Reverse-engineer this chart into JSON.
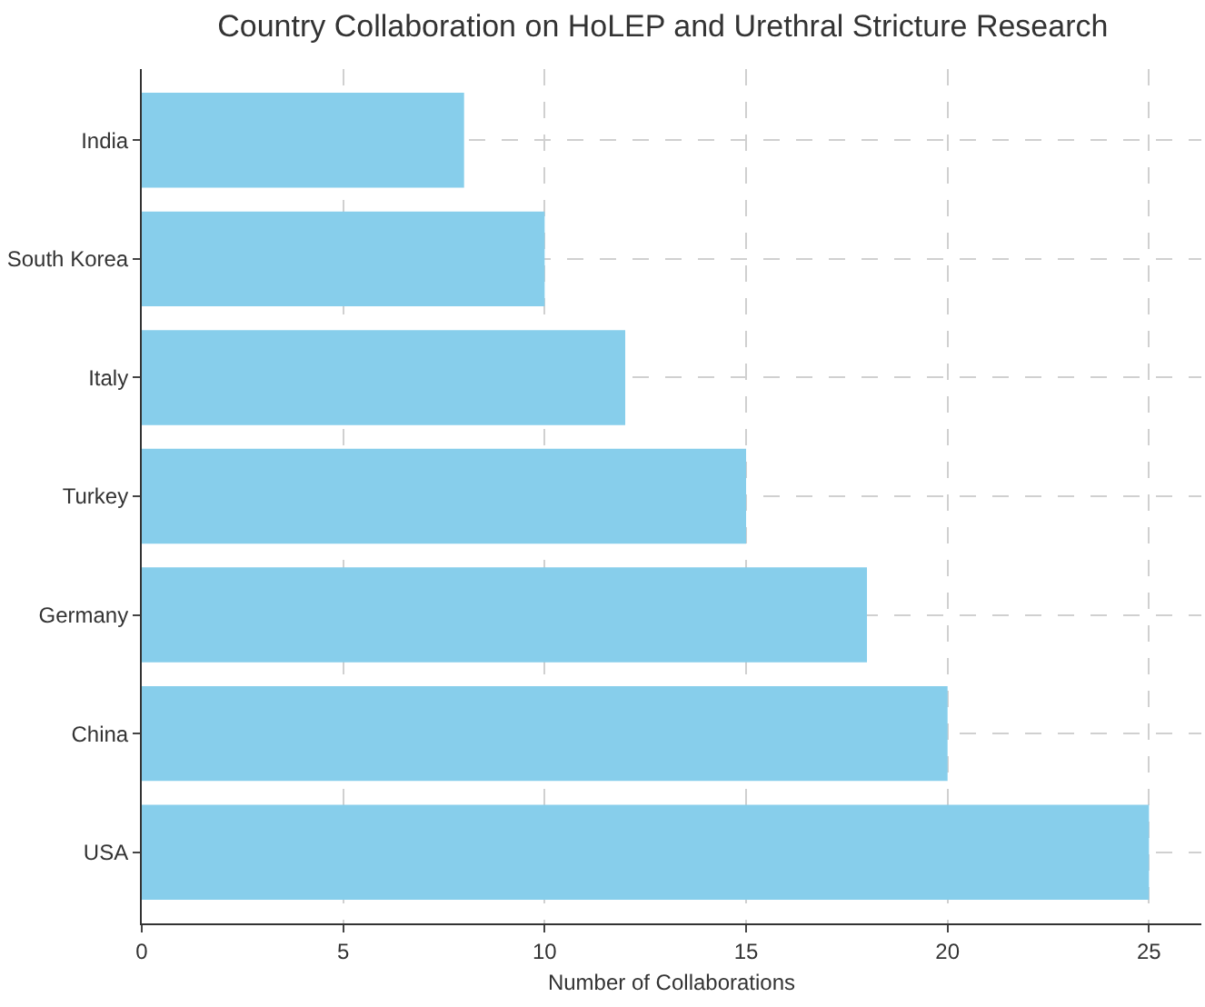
{
  "chart_data": {
    "type": "bar",
    "orientation": "horizontal",
    "title": "Country Collaboration on HoLEP and Urethral Stricture Research",
    "xlabel": "Number of Collaborations",
    "categories": [
      "India",
      "South Korea",
      "Italy",
      "Turkey",
      "Germany",
      "China",
      "USA"
    ],
    "values": [
      8,
      10,
      12,
      15,
      18,
      20,
      25
    ],
    "color": "#87ceeb",
    "xlim": [
      0,
      26.3
    ],
    "xticks": [
      0,
      5,
      10,
      15,
      20,
      25
    ],
    "grid": true
  }
}
